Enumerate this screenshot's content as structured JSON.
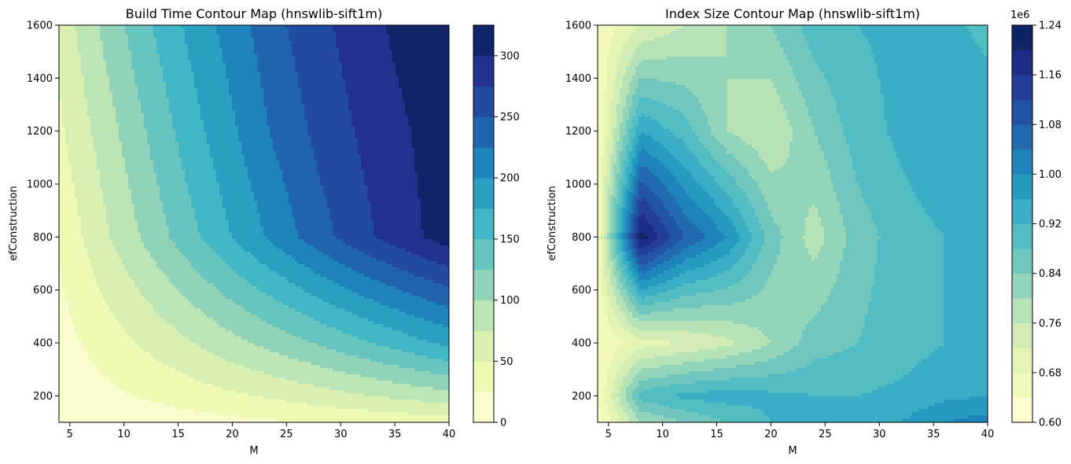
{
  "chart_data": [
    {
      "type": "contour",
      "title": "Build Time Contour Map (hnswlib-sift1m)",
      "xlabel": "M",
      "ylabel": "efConstruction",
      "xlim": [
        4,
        40
      ],
      "ylim": [
        100,
        1600
      ],
      "x_ticks": [
        "5",
        "10",
        "15",
        "20",
        "25",
        "30",
        "35",
        "40"
      ],
      "y_ticks": [
        "200",
        "400",
        "600",
        "800",
        "1000",
        "1200",
        "1400",
        "1600"
      ],
      "colorbar": {
        "min": 0,
        "max": 325,
        "ticks": [
          "0",
          "50",
          "100",
          "150",
          "200",
          "250",
          "300"
        ],
        "levels": [
          0,
          25,
          50,
          75,
          100,
          125,
          150,
          175,
          200,
          225,
          250,
          275,
          300,
          325
        ],
        "offset_text": ""
      },
      "grid_x": [
        4,
        8,
        12,
        16,
        20,
        24,
        28,
        32,
        36,
        40
      ],
      "grid_y": [
        100,
        200,
        400,
        800,
        1200,
        1600
      ],
      "z": [
        [
          2,
          6,
          10,
          14,
          18,
          22,
          26,
          30,
          34,
          38
        ],
        [
          8,
          18,
          28,
          37,
          46,
          55,
          64,
          73,
          82,
          91
        ],
        [
          15,
          35,
          54,
          73,
          92,
          110,
          128,
          146,
          164,
          182
        ],
        [
          28,
          68,
          105,
          141,
          176,
          208,
          240,
          268,
          292,
          312
        ],
        [
          45,
          85,
          125,
          163,
          196,
          230,
          257,
          279,
          298,
          315
        ],
        [
          57,
          104,
          145,
          180,
          212,
          244,
          268,
          290,
          309,
          325
        ]
      ]
    },
    {
      "type": "contour",
      "title": "Index Size Contour Map (hnswlib-sift1m)",
      "xlabel": "M",
      "ylabel": "efConstruction",
      "xlim": [
        4,
        40
      ],
      "ylim": [
        100,
        1600
      ],
      "x_ticks": [
        "5",
        "10",
        "15",
        "20",
        "25",
        "30",
        "35",
        "40"
      ],
      "y_ticks": [
        "200",
        "400",
        "600",
        "800",
        "1000",
        "1200",
        "1400",
        "1600"
      ],
      "colorbar": {
        "min": 0.6,
        "max": 1.24,
        "ticks": [
          "0.60",
          "0.68",
          "0.76",
          "0.84",
          "0.92",
          "1.00",
          "1.08",
          "1.16",
          "1.24"
        ],
        "levels": [
          0.6,
          0.64,
          0.68,
          0.72,
          0.76,
          0.8,
          0.84,
          0.88,
          0.92,
          0.96,
          1.0,
          1.04,
          1.08,
          1.12,
          1.16,
          1.2,
          1.24
        ],
        "offset_text": "1e6"
      },
      "grid_x": [
        4,
        8,
        12,
        16,
        20,
        24,
        28,
        32,
        36,
        40
      ],
      "grid_y": [
        100,
        200,
        400,
        800,
        1200,
        1600
      ],
      "z": [
        [
          0.62,
          0.8,
          0.84,
          0.88,
          0.92,
          0.94,
          0.95,
          0.96,
          1.0,
          1.02
        ],
        [
          0.64,
          0.9,
          0.93,
          0.94,
          0.93,
          0.92,
          0.92,
          0.93,
          0.95,
          0.96
        ],
        [
          0.64,
          0.7,
          0.72,
          0.75,
          0.8,
          0.86,
          0.88,
          0.9,
          0.92,
          0.94
        ],
        [
          0.66,
          1.22,
          1.08,
          1.0,
          0.86,
          0.78,
          0.86,
          0.9,
          0.92,
          0.96
        ],
        [
          0.63,
          0.96,
          0.9,
          0.8,
          0.76,
          0.84,
          0.9,
          0.93,
          0.96,
          0.94
        ],
        [
          0.65,
          0.72,
          0.76,
          0.8,
          0.84,
          0.9,
          0.92,
          0.93,
          0.93,
          0.91
        ]
      ]
    }
  ]
}
